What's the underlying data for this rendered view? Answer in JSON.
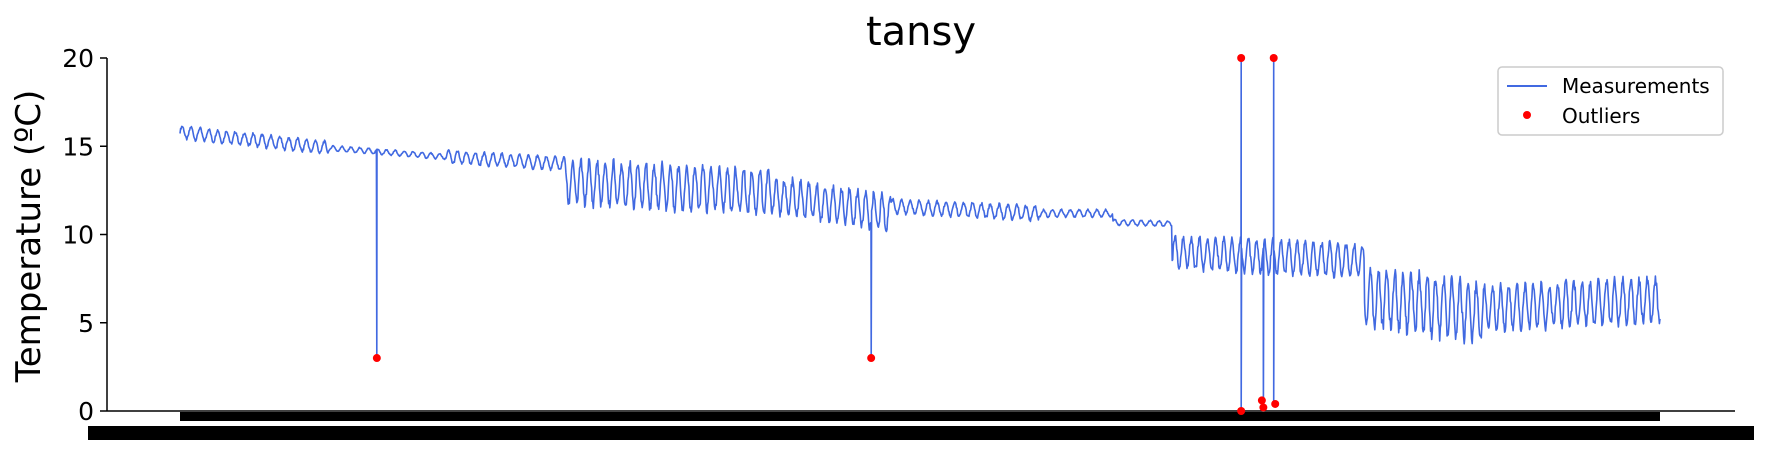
{
  "chart_data": {
    "type": "line",
    "title": "tansy",
    "ylabel": "Temperature (ºC)",
    "xlabel": "",
    "ylim": [
      0,
      20
    ],
    "yticks": [
      0,
      5,
      10,
      15,
      20
    ],
    "grid": false,
    "legend": {
      "placement": "top-right",
      "entries": [
        "Measurements",
        "Outliers"
      ]
    },
    "colors": {
      "measurements": "#4169e1",
      "outliers": "#ff0000"
    },
    "x_tick_labels_note": "",
    "series": [
      {
        "name": "Measurements",
        "segments": [
          {
            "from": 0.0,
            "to": 0.1,
            "start": 15.8,
            "end": 14.9,
            "amp": 0.35,
            "period": 0.006
          },
          {
            "from": 0.1,
            "to": 0.18,
            "start": 14.9,
            "end": 14.4,
            "amp": 0.15,
            "period": 0.006
          },
          {
            "from": 0.18,
            "to": 0.26,
            "start": 14.4,
            "end": 14.0,
            "amp": 0.35,
            "period": 0.006
          },
          {
            "from": 0.26,
            "to": 0.4,
            "start": 13.0,
            "end": 12.4,
            "amp": 1.2,
            "period": 0.0055
          },
          {
            "from": 0.4,
            "to": 0.48,
            "start": 12.2,
            "end": 11.2,
            "amp": 1.0,
            "period": 0.0055
          },
          {
            "from": 0.48,
            "to": 0.58,
            "start": 11.6,
            "end": 11.2,
            "amp": 0.4,
            "period": 0.006
          },
          {
            "from": 0.58,
            "to": 0.63,
            "start": 11.2,
            "end": 11.2,
            "amp": 0.2,
            "period": 0.006
          },
          {
            "from": 0.63,
            "to": 0.67,
            "start": 10.7,
            "end": 10.6,
            "amp": 0.15,
            "period": 0.006
          },
          {
            "from": 0.67,
            "to": 0.8,
            "start": 9.0,
            "end": 8.5,
            "amp": 0.9,
            "period": 0.0055
          },
          {
            "from": 0.8,
            "to": 0.88,
            "start": 6.5,
            "end": 5.6,
            "amp": 1.6,
            "period": 0.0055
          },
          {
            "from": 0.88,
            "to": 1.0,
            "start": 5.8,
            "end": 6.3,
            "amp": 1.2,
            "period": 0.0055
          }
        ],
        "spikes": [
          {
            "pos": 0.133,
            "low": 3.0
          },
          {
            "pos": 0.467,
            "low": 3.0
          },
          {
            "pos": 0.717,
            "high": 20.0,
            "low": 0.0
          },
          {
            "pos": 0.732,
            "low": 0.3
          },
          {
            "pos": 0.739,
            "high": 20.0,
            "low": 0.4
          }
        ]
      },
      {
        "name": "Outliers",
        "type": "scatter",
        "points": [
          {
            "pos": 0.133,
            "y": 3.0
          },
          {
            "pos": 0.467,
            "y": 3.0
          },
          {
            "pos": 0.717,
            "y": 20.0
          },
          {
            "pos": 0.717,
            "y": 0.0
          },
          {
            "pos": 0.731,
            "y": 0.6
          },
          {
            "pos": 0.732,
            "y": 0.2
          },
          {
            "pos": 0.739,
            "y": 20.0
          },
          {
            "pos": 0.74,
            "y": 0.4
          }
        ]
      }
    ]
  }
}
